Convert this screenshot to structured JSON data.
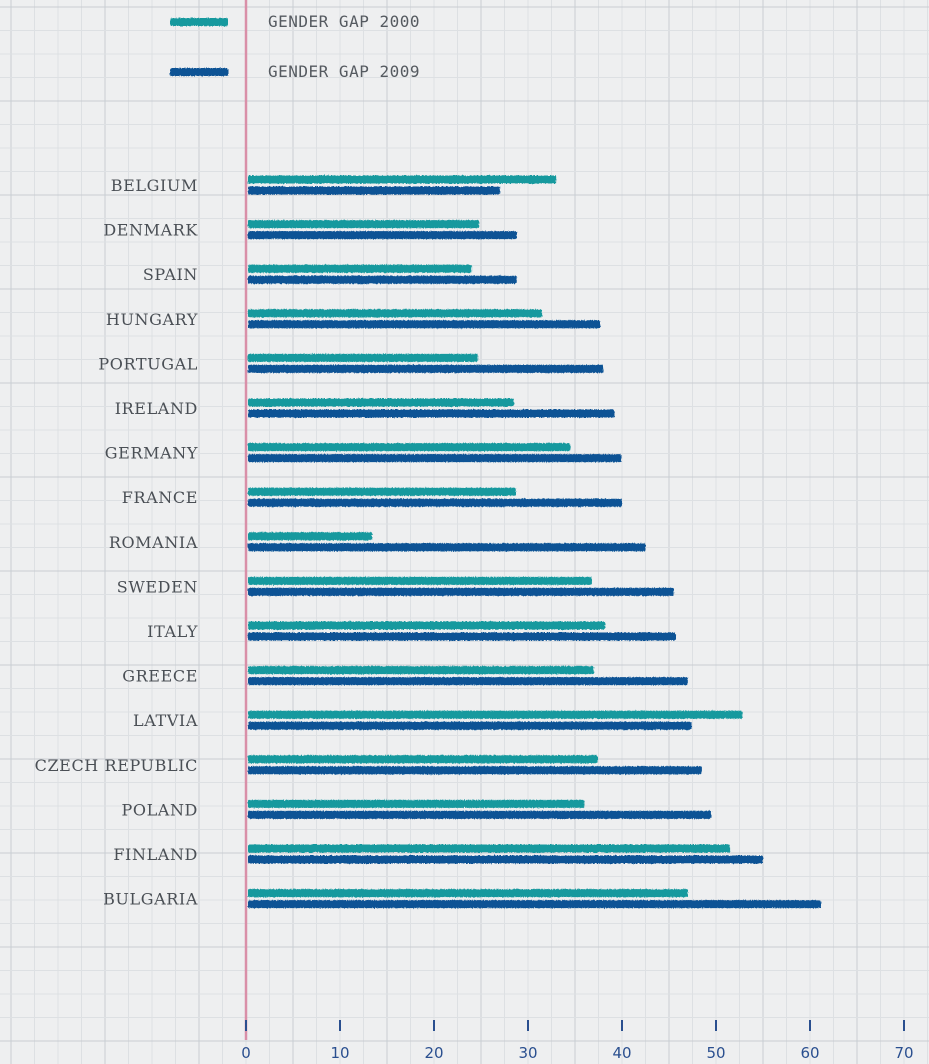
{
  "colors": {
    "series_2000": "#17999e",
    "series_2009": "#0b5395",
    "axis_line": "#d98fa8",
    "grid_major": "#c9cdd2",
    "grid_minor": "#dde0e3",
    "tick": "#2a4f8f"
  },
  "legend": {
    "items": [
      {
        "label": "GENDER GAP 2000",
        "color": "#17999e"
      },
      {
        "label": "GENDER GAP 2009",
        "color": "#0b5395"
      }
    ]
  },
  "chart_data": {
    "type": "bar",
    "orientation": "horizontal",
    "title": "",
    "xlabel": "",
    "ylabel": "",
    "xlim": [
      0,
      70
    ],
    "x_ticks": [
      0,
      10,
      20,
      30,
      40,
      50,
      60,
      70
    ],
    "grid": true,
    "legend_position": "top-left",
    "categories": [
      "BELGIUM",
      "DENMARK",
      "SPAIN",
      "HUNGARY",
      "PORTUGAL",
      "IRELAND",
      "GERMANY",
      "FRANCE",
      "ROMANIA",
      "SWEDEN",
      "ITALY",
      "GREECE",
      "LATVIA",
      "CZECH REPUBLIC",
      "POLAND",
      "FINLAND",
      "BULGARIA"
    ],
    "series": [
      {
        "name": "GENDER GAP 2000",
        "values": [
          33.0,
          24.8,
          24.0,
          31.5,
          24.7,
          28.5,
          34.5,
          28.7,
          13.4,
          36.8,
          38.2,
          37.0,
          52.8,
          37.4,
          36.0,
          51.5,
          47.0
        ]
      },
      {
        "name": "GENDER GAP 2009",
        "values": [
          27.0,
          28.8,
          28.8,
          37.7,
          38.0,
          39.2,
          39.9,
          40.0,
          42.5,
          45.5,
          45.7,
          47.0,
          47.4,
          48.5,
          49.5,
          55.0,
          61.2
        ]
      }
    ]
  }
}
